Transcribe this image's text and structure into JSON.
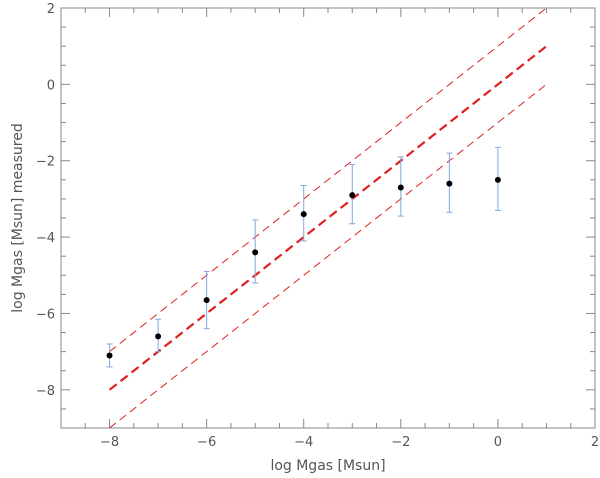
{
  "chart_data": {
    "type": "scatter",
    "title": "",
    "xlabel": "log Mgas  [Msun]",
    "ylabel": "log Mgas  [Msun] measured",
    "xlim": [
      -9,
      2
    ],
    "ylim": [
      -9,
      2
    ],
    "xticks": [
      -8,
      -6,
      -4,
      -2,
      0,
      2
    ],
    "yticks": [
      -8,
      -6,
      -4,
      -2,
      0,
      2
    ],
    "x_minor_step": 0.5,
    "y_minor_step": 0.5,
    "grid": false,
    "series": [
      {
        "kind": "points_with_errorbars",
        "color": "#000000",
        "errorbar_color": "#7fa8e0",
        "points": [
          {
            "x": -8,
            "y": -7.1,
            "ylow": -7.4,
            "yhigh": -6.8
          },
          {
            "x": -7,
            "y": -6.6,
            "ylow": -7.0,
            "yhigh": -6.15
          },
          {
            "x": -6,
            "y": -5.65,
            "ylow": -6.4,
            "yhigh": -4.9
          },
          {
            "x": -5,
            "y": -4.4,
            "ylow": -5.2,
            "yhigh": -3.55
          },
          {
            "x": -4,
            "y": -3.4,
            "ylow": -4.1,
            "yhigh": -2.65
          },
          {
            "x": -3,
            "y": -2.9,
            "ylow": -3.65,
            "yhigh": -2.1
          },
          {
            "x": -2,
            "y": -2.7,
            "ylow": -3.45,
            "yhigh": -1.9
          },
          {
            "x": -1,
            "y": -2.6,
            "ylow": -3.35,
            "yhigh": -1.8
          },
          {
            "x": 0,
            "y": -2.5,
            "ylow": -3.3,
            "yhigh": -1.65
          }
        ]
      },
      {
        "kind": "line",
        "style": "dashed-thick",
        "color": "#e02020",
        "x": [
          -8,
          1
        ],
        "y": [
          -8,
          1
        ]
      },
      {
        "kind": "line",
        "style": "dashed-thin",
        "color": "#e02020",
        "x": [
          -8,
          1
        ],
        "y": [
          -7,
          2
        ]
      },
      {
        "kind": "line",
        "style": "dashed-thin",
        "color": "#e02020",
        "x": [
          -8,
          1
        ],
        "y": [
          -9,
          0
        ]
      }
    ]
  }
}
